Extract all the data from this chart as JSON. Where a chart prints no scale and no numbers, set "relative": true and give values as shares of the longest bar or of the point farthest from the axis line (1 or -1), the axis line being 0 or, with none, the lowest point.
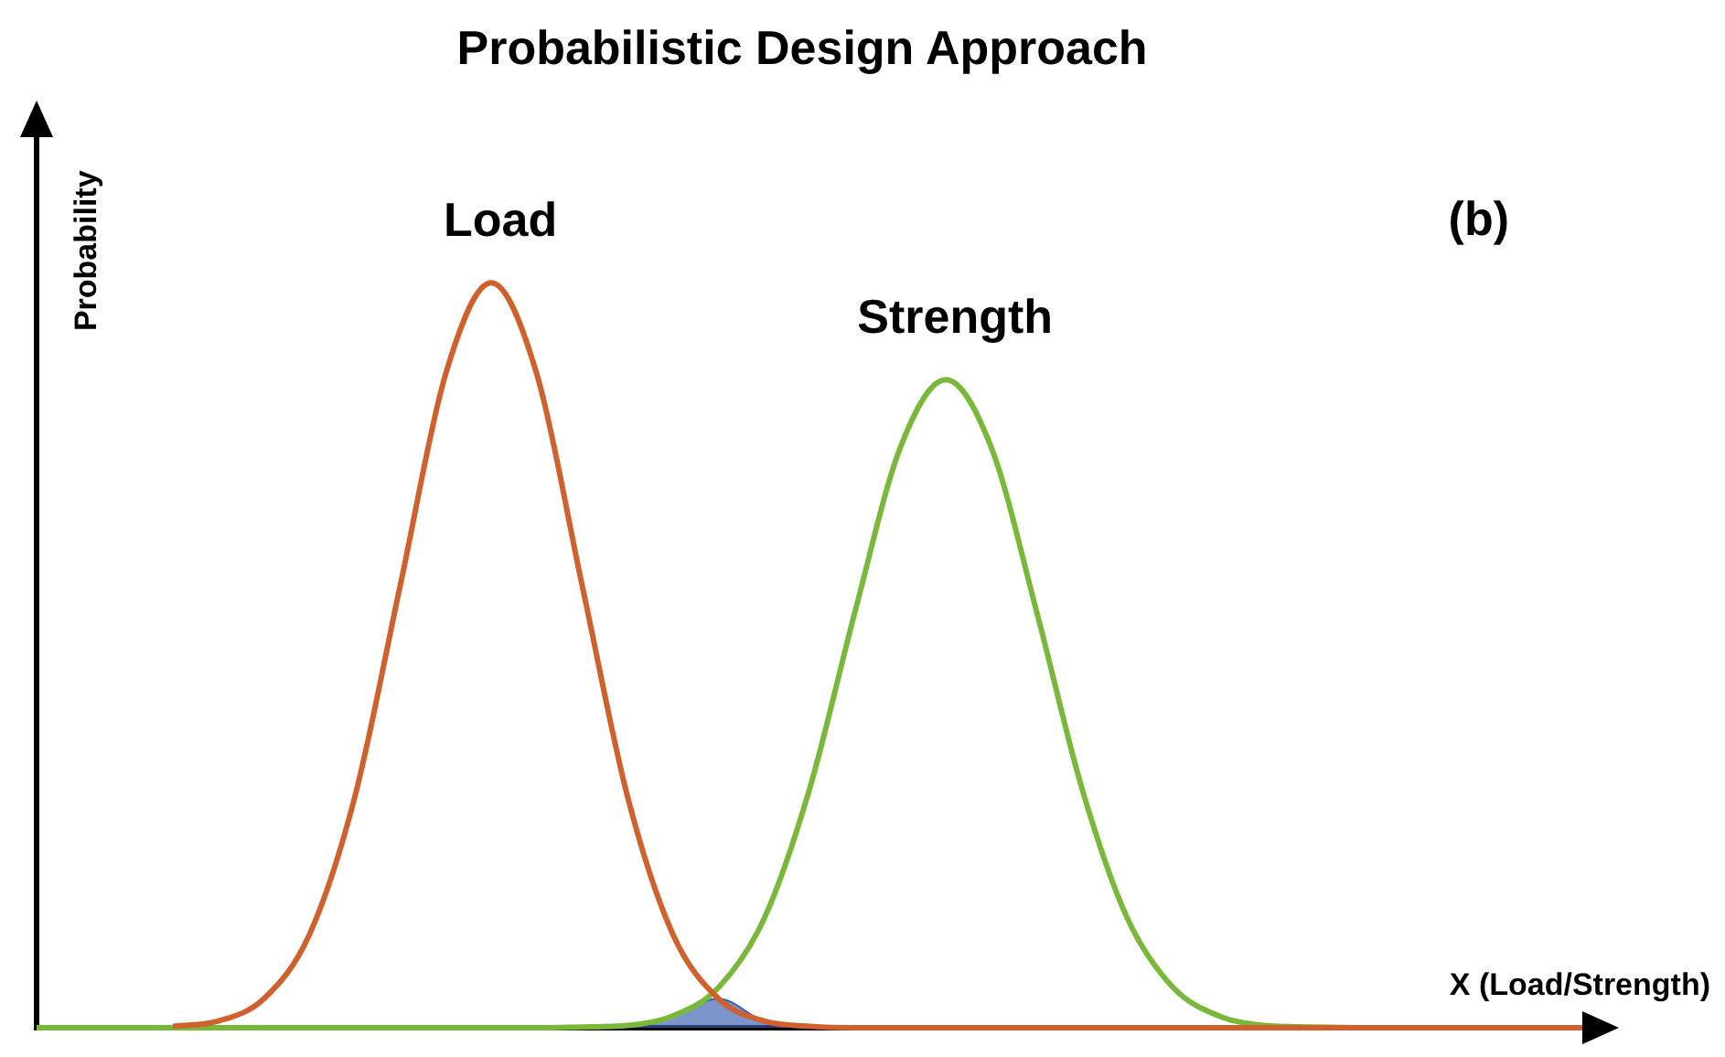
{
  "chart_data": {
    "type": "line",
    "title": "Probabilistic Design Approach",
    "xlabel": "X (Load/Strength)",
    "ylabel": "Probability",
    "annotations": [
      "(b)"
    ],
    "relative": true,
    "marker": "none",
    "categories": [
      null,
      null,
      null,
      null,
      null,
      null,
      null,
      null,
      null,
      null,
      null,
      null,
      null,
      null,
      null,
      null,
      null,
      null,
      null,
      null,
      null,
      null,
      null,
      null,
      null,
      null,
      null,
      null,
      null,
      null,
      null,
      null,
      null,
      null,
      null
    ],
    "series": [
      {
        "name": "Load",
        "type": "line",
        "color": "#d0602c",
        "values": [
          null,
          null,
          null,
          0.002,
          0.009,
          0.039,
          0.125,
          0.31,
          0.594,
          0.878,
          1,
          0.878,
          0.594,
          0.31,
          0.125,
          0.039,
          0.009,
          0.002,
          0,
          0,
          0,
          0,
          0,
          0,
          0,
          0,
          0,
          0,
          0,
          0,
          0,
          0,
          0,
          0,
          0
        ]
      },
      {
        "name": "Strength",
        "type": "line",
        "color": "#7ab83a",
        "values": [
          0,
          0,
          0,
          0,
          0,
          0,
          0,
          0,
          0,
          0,
          0,
          0,
          0.001,
          0.003,
          0.016,
          0.054,
          0.146,
          0.32,
          0.558,
          0.779,
          0.87,
          0.779,
          0.558,
          0.32,
          0.146,
          0.054,
          0.016,
          0.003,
          0.001,
          0,
          null,
          null,
          null,
          null,
          null
        ]
      },
      {
        "type": "area",
        "color": "#3a5fb0",
        "values": [
          null,
          null,
          null,
          null,
          null,
          null,
          null,
          null,
          null,
          null,
          null,
          null,
          0.001,
          0.003,
          0.016,
          0.039,
          0.009,
          0.002,
          null,
          null,
          null,
          null,
          null,
          null,
          null,
          null,
          null,
          null,
          null,
          null,
          null,
          null,
          null,
          null,
          null
        ]
      }
    ]
  }
}
